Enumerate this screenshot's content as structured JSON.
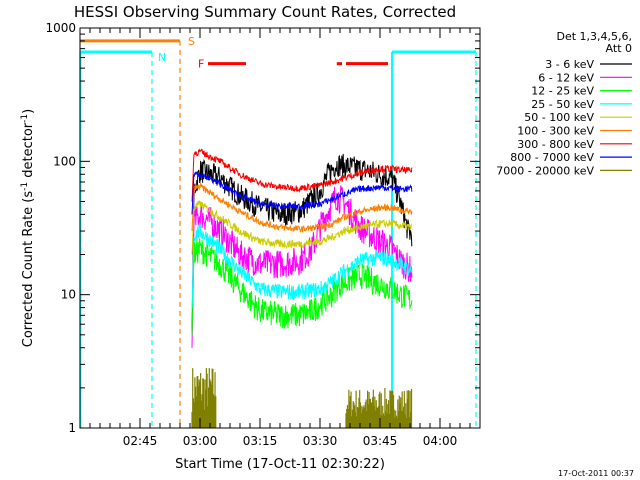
{
  "chart_data": {
    "type": "line",
    "title": "HESSI Observing Summary Count Rates, Corrected",
    "xlabel": "Start Time (17-Oct-11 02:30:22)",
    "ylabel": "Corrected Count Rate (s",
    "ylabel_sup1": "-1",
    "ylabel_mid": " detector",
    "ylabel_sup2": "-1",
    "ylabel_end": ")",
    "ylog": true,
    "ylim": [
      1,
      1000
    ],
    "xlim_min": [
      0,
      100
    ],
    "x_ticks": [
      {
        "value": 15,
        "label": "02:45"
      },
      {
        "value": 30,
        "label": "03:00"
      },
      {
        "value": 45,
        "label": "03:15"
      },
      {
        "value": 60,
        "label": "03:30"
      },
      {
        "value": 75,
        "label": "03:45"
      },
      {
        "value": 90,
        "label": "04:00"
      }
    ],
    "y_ticks": [
      {
        "value": 1,
        "label": "1"
      },
      {
        "value": 10,
        "label": "10"
      },
      {
        "value": 100,
        "label": "100"
      },
      {
        "value": 1000,
        "label": "1000"
      }
    ],
    "legend_header": [
      "Det 1,3,4,5,6,",
      "Att 0"
    ],
    "timestamp": "17-Oct-2011 00:37",
    "data_start": 28,
    "data_end": 83,
    "series": [
      {
        "name": "3 - 6 keV",
        "color": "#000000",
        "noise": 0.18,
        "points": [
          [
            28,
            5
          ],
          [
            28.5,
            60
          ],
          [
            30,
            85
          ],
          [
            35,
            75
          ],
          [
            40,
            55
          ],
          [
            45,
            45
          ],
          [
            50,
            40
          ],
          [
            55,
            42
          ],
          [
            60,
            60
          ],
          [
            62,
            80
          ],
          [
            64,
            95
          ],
          [
            68,
            90
          ],
          [
            72,
            85
          ],
          [
            75,
            80
          ],
          [
            78,
            75
          ],
          [
            80,
            50
          ],
          [
            82,
            30
          ],
          [
            83,
            28
          ]
        ]
      },
      {
        "name": "6 - 12 keV",
        "color": "#ff00ff",
        "noise": 0.22,
        "points": [
          [
            28,
            4
          ],
          [
            28.5,
            35
          ],
          [
            30,
            40
          ],
          [
            33,
            35
          ],
          [
            36,
            28
          ],
          [
            40,
            20
          ],
          [
            45,
            17
          ],
          [
            50,
            17
          ],
          [
            55,
            18
          ],
          [
            58,
            22
          ],
          [
            60,
            32
          ],
          [
            62,
            42
          ],
          [
            64,
            55
          ],
          [
            66,
            50
          ],
          [
            70,
            32
          ],
          [
            75,
            25
          ],
          [
            78,
            22
          ],
          [
            80,
            18
          ],
          [
            83,
            15
          ]
        ]
      },
      {
        "name": "12 - 25 keV",
        "color": "#00ff00",
        "noise": 0.2,
        "points": [
          [
            28,
            5
          ],
          [
            28.5,
            20
          ],
          [
            30,
            22
          ],
          [
            35,
            17
          ],
          [
            40,
            11
          ],
          [
            45,
            7.5
          ],
          [
            50,
            7
          ],
          [
            55,
            7
          ],
          [
            58,
            7.5
          ],
          [
            60,
            8.5
          ],
          [
            63,
            10
          ],
          [
            65,
            12
          ],
          [
            68,
            13
          ],
          [
            70,
            14
          ],
          [
            75,
            12
          ],
          [
            78,
            11
          ],
          [
            80,
            10
          ],
          [
            83,
            9
          ]
        ]
      },
      {
        "name": "25 - 50 keV",
        "color": "#00ffff",
        "noise": 0.12,
        "points": [
          [
            28,
            8
          ],
          [
            28.5,
            28
          ],
          [
            30,
            30
          ],
          [
            35,
            22
          ],
          [
            40,
            15
          ],
          [
            45,
            11
          ],
          [
            50,
            10.5
          ],
          [
            55,
            10.5
          ],
          [
            60,
            11
          ],
          [
            63,
            12.5
          ],
          [
            66,
            15
          ],
          [
            70,
            18
          ],
          [
            75,
            19
          ],
          [
            78,
            18
          ],
          [
            80,
            17
          ],
          [
            83,
            15
          ]
        ]
      },
      {
        "name": "50 - 100 keV",
        "color": "#cccc00",
        "noise": 0.06,
        "points": [
          [
            28,
            20
          ],
          [
            28.5,
            45
          ],
          [
            30,
            48
          ],
          [
            35,
            38
          ],
          [
            40,
            30
          ],
          [
            45,
            25
          ],
          [
            50,
            24
          ],
          [
            55,
            24
          ],
          [
            60,
            25
          ],
          [
            63,
            27
          ],
          [
            66,
            30
          ],
          [
            70,
            32
          ],
          [
            75,
            34
          ],
          [
            78,
            34
          ],
          [
            80,
            33
          ],
          [
            83,
            32
          ]
        ]
      },
      {
        "name": "100 - 300 keV",
        "color": "#ff8000",
        "noise": 0.05,
        "points": [
          [
            28,
            30
          ],
          [
            28.5,
            62
          ],
          [
            30,
            65
          ],
          [
            35,
            52
          ],
          [
            40,
            42
          ],
          [
            45,
            35
          ],
          [
            50,
            32
          ],
          [
            55,
            31
          ],
          [
            60,
            32
          ],
          [
            63,
            34
          ],
          [
            66,
            38
          ],
          [
            70,
            42
          ],
          [
            75,
            45
          ],
          [
            78,
            45
          ],
          [
            80,
            43
          ],
          [
            83,
            42
          ]
        ]
      },
      {
        "name": "300 - 800 keV",
        "color": "#ff0000",
        "noise": 0.05,
        "points": [
          [
            28,
            50
          ],
          [
            28.5,
            115
          ],
          [
            30,
            118
          ],
          [
            35,
            100
          ],
          [
            40,
            80
          ],
          [
            45,
            68
          ],
          [
            50,
            64
          ],
          [
            55,
            63
          ],
          [
            60,
            66
          ],
          [
            63,
            70
          ],
          [
            66,
            75
          ],
          [
            70,
            82
          ],
          [
            75,
            88
          ],
          [
            78,
            88
          ],
          [
            80,
            86
          ],
          [
            83,
            85
          ]
        ]
      },
      {
        "name": "800 - 7000 keV",
        "color": "#0000ff",
        "noise": 0.05,
        "points": [
          [
            28,
            40
          ],
          [
            28.5,
            82
          ],
          [
            30,
            80
          ],
          [
            35,
            68
          ],
          [
            40,
            55
          ],
          [
            45,
            48
          ],
          [
            50,
            46
          ],
          [
            55,
            46
          ],
          [
            60,
            48
          ],
          [
            63,
            52
          ],
          [
            66,
            57
          ],
          [
            70,
            62
          ],
          [
            75,
            64
          ],
          [
            78,
            63
          ],
          [
            80,
            62
          ],
          [
            83,
            62
          ]
        ]
      },
      {
        "name": "7000 - 20000 keV",
        "color": "#808000",
        "noise": 0.0,
        "points": []
      }
    ],
    "bands": [
      {
        "name": "7000 - 20000 keV",
        "color": "#808000",
        "x": [
          28,
          34
        ],
        "y": [
          1,
          3
        ]
      },
      {
        "name": "7000 - 20000 keV",
        "color": "#808000",
        "x": [
          66.5,
          83
        ],
        "y": [
          1,
          2
        ]
      }
    ],
    "annotations": [
      {
        "label": "S",
        "color": "#ff8000",
        "bar": [
          0,
          25
        ],
        "bar_y": 800,
        "marker_x": 25,
        "label_x": 27
      },
      {
        "label": "N",
        "color": "#00ffff",
        "bar": [
          0,
          18
        ],
        "bar_y": 660,
        "marker_x": 18,
        "label_x": 19.5
      },
      {
        "label": "F",
        "color": "#ff0000",
        "segments": [
          [
            32,
            41.5
          ],
          [
            64.2,
            65.5
          ],
          [
            66.5,
            77
          ]
        ],
        "bar_y": 540,
        "label_x": 29.5
      }
    ],
    "cyan_markers": {
      "color": "#00ffff",
      "left_x": 0.1,
      "left_top": 660,
      "mid_dashed_x": 18,
      "solid_x": 78,
      "right_bar": [
        78,
        99
      ],
      "right_dashed_x": 99,
      "right_top": 660
    }
  }
}
